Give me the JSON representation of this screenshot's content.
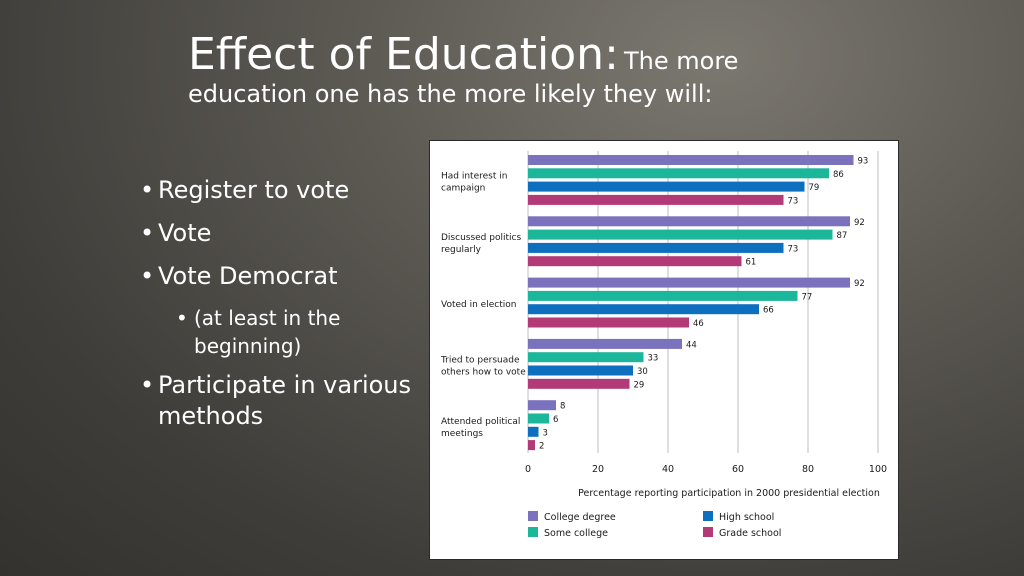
{
  "slide": {
    "title_main": "Effect of Education:",
    "title_sub_1": "The more",
    "title_sub_2": "education one has the more likely they will:"
  },
  "bullets": [
    {
      "text": "Register to vote",
      "level": 1
    },
    {
      "text": "Vote",
      "level": 1
    },
    {
      "text": "Vote Democrat",
      "level": 1
    },
    {
      "text": "(at least in the beginning)",
      "level": 2
    },
    {
      "text": "Participate in various methods",
      "level": 1
    }
  ],
  "chart_data": {
    "type": "bar",
    "orientation": "horizontal",
    "categories": [
      "Had interest in campaign",
      "Discussed politics regularly",
      "Voted in election",
      "Tried to persuade others how to vote",
      "Attended political meetings"
    ],
    "series": [
      {
        "name": "College degree",
        "color": "#7b72bd",
        "values": [
          93,
          92,
          92,
          44,
          8
        ]
      },
      {
        "name": "Some college",
        "color": "#1cb69a",
        "values": [
          86,
          87,
          77,
          33,
          6
        ]
      },
      {
        "name": "High school",
        "color": "#0f6fbf",
        "values": [
          79,
          73,
          66,
          30,
          3
        ]
      },
      {
        "name": "Grade school",
        "color": "#b23a76",
        "values": [
          73,
          61,
          46,
          29,
          2
        ]
      }
    ],
    "xlabel": "Percentage reporting participation in 2000 presidential election",
    "xlim": [
      0,
      100
    ],
    "xticks": [
      0,
      20,
      40,
      60,
      80,
      100
    ],
    "grid": true,
    "legend_position": "bottom"
  }
}
